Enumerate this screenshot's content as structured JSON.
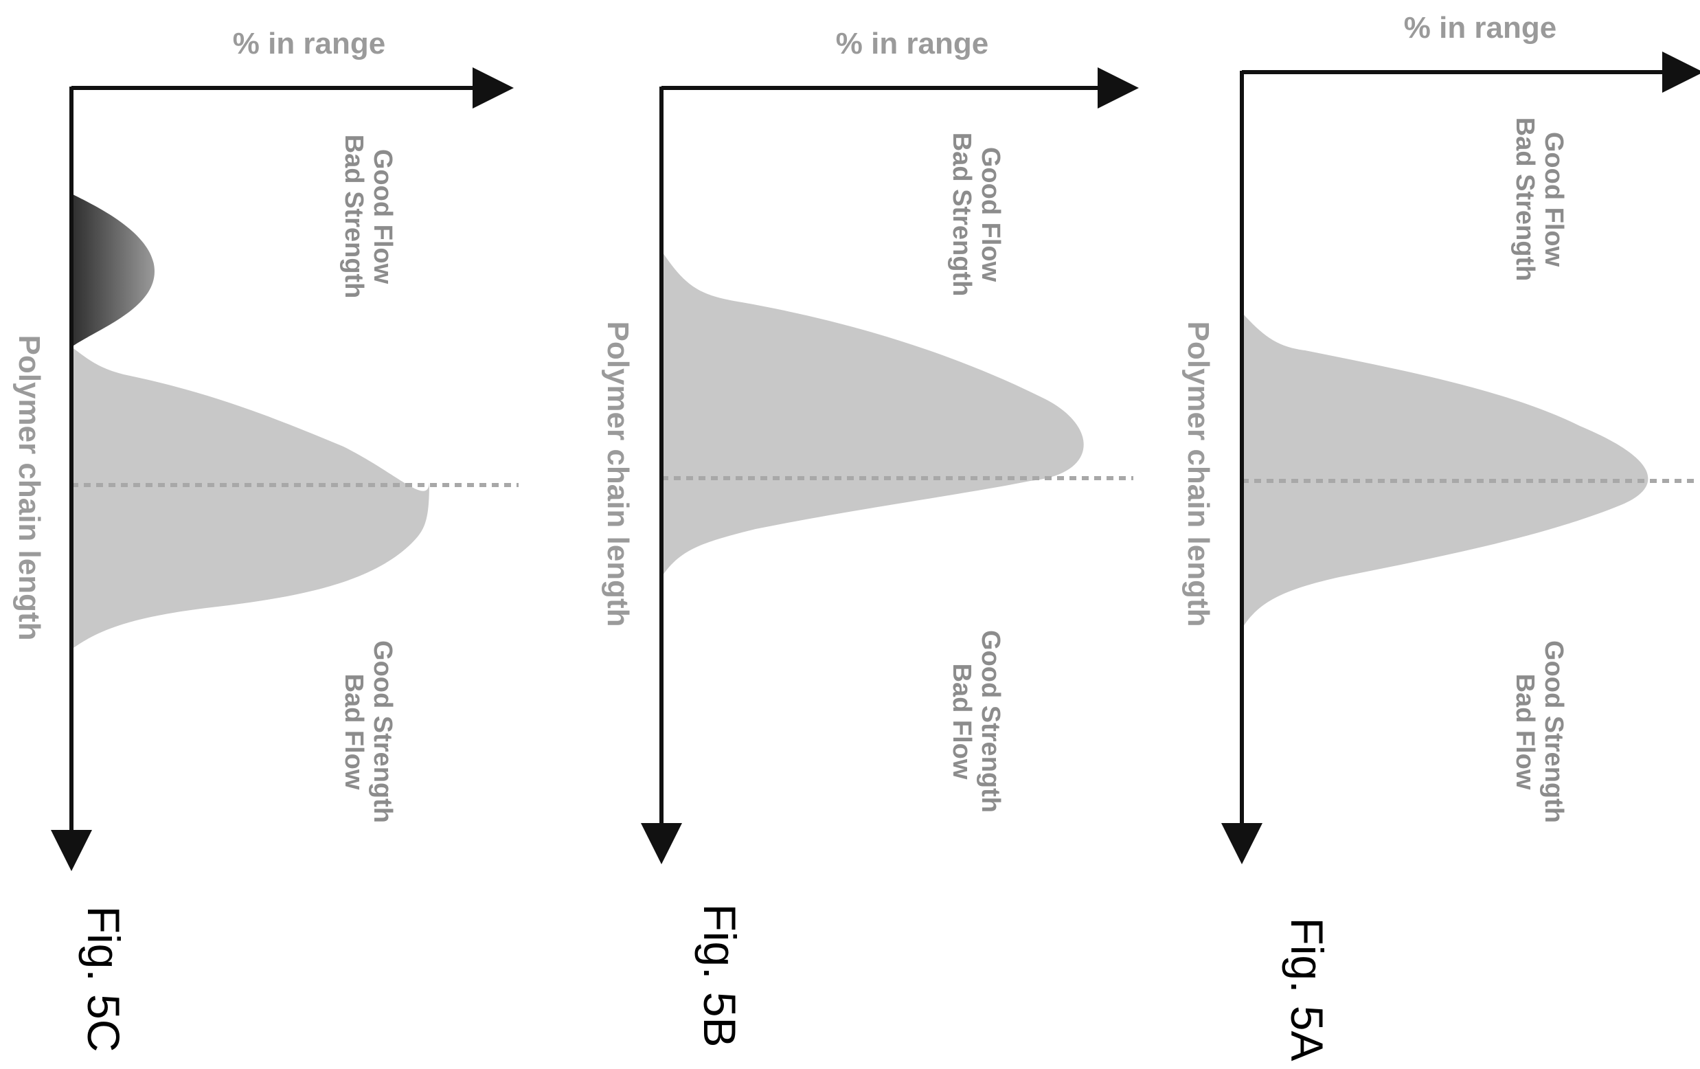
{
  "figures": [
    {
      "id": "5C",
      "caption": "Fig. 5C",
      "x_axis_label": "% in range",
      "y_axis_label": "Polymer chain length",
      "top_region_label": [
        "Good Flow",
        "Bad Strength"
      ],
      "bottom_region_label": [
        "Good Strength",
        "Bad Flow"
      ],
      "distributions": [
        {
          "kind": "main",
          "fill": "#c8c8c8"
        },
        {
          "kind": "secondary-short-chain",
          "fill": "#5a5a5a"
        }
      ]
    },
    {
      "id": "5B",
      "caption": "Fig. 5B",
      "x_axis_label": "% in range",
      "y_axis_label": "Polymer chain length",
      "top_region_label": [
        "Good Flow",
        "Bad Strength"
      ],
      "bottom_region_label": [
        "Good Strength",
        "Bad Flow"
      ],
      "distributions": [
        {
          "kind": "main",
          "fill": "#c8c8c8"
        }
      ]
    },
    {
      "id": "5A",
      "caption": "Fig. 5A",
      "x_axis_label": "% in range",
      "y_axis_label": "Polymer chain length",
      "top_region_label": [
        "Good Flow",
        "Bad Strength"
      ],
      "bottom_region_label": [
        "Good Strength",
        "Bad Flow"
      ],
      "distributions": [
        {
          "kind": "main",
          "fill": "#c8c8c8"
        }
      ]
    }
  ],
  "colors": {
    "axis": "#111111",
    "distribution": "#c8c8c8",
    "secondary_peak": "#5a5a5a",
    "dotted_line": "#a8a8a8",
    "text_gray": "#9a9a9a",
    "caption": "#000000"
  }
}
